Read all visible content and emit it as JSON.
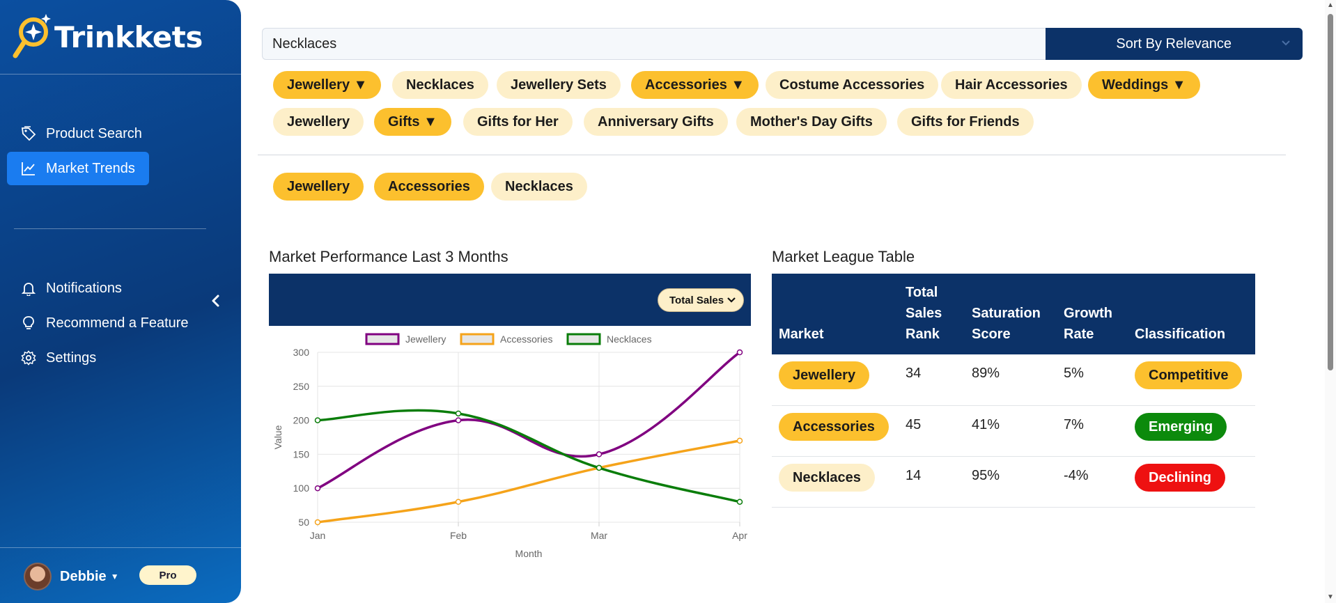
{
  "app": {
    "brand": "Trinkkets"
  },
  "sidebar": {
    "nav_top": [
      {
        "label": "Product Search",
        "icon": "tag-icon",
        "active": false
      },
      {
        "label": "Market Trends",
        "icon": "trend-chart-icon",
        "active": true
      }
    ],
    "nav_bottom": [
      {
        "label": "Notifications",
        "icon": "bell-icon"
      },
      {
        "label": "Recommend a Feature",
        "icon": "lightbulb-icon"
      },
      {
        "label": "Settings",
        "icon": "gear-icon"
      }
    ],
    "user": {
      "name": "Debbie",
      "plan": "Pro"
    }
  },
  "search": {
    "value": "Necklaces",
    "sort_label": "Sort By Relevance"
  },
  "category_chips": [
    {
      "label": "Jewellery ▼",
      "style": "gold"
    },
    {
      "label": "Necklaces",
      "style": "cream"
    },
    {
      "label": "Jewellery Sets",
      "style": "cream"
    },
    {
      "label": "Accessories ▼",
      "style": "gold"
    },
    {
      "label": "Costume Accessories",
      "style": "cream"
    },
    {
      "label": "Hair Accessories",
      "style": "cream"
    },
    {
      "label": "Weddings ▼",
      "style": "gold"
    },
    {
      "label": "Jewellery",
      "style": "cream"
    },
    {
      "label": "Gifts ▼",
      "style": "gold"
    },
    {
      "label": "Gifts for Her",
      "style": "cream"
    },
    {
      "label": "Anniversary Gifts",
      "style": "cream"
    },
    {
      "label": "Mother's Day Gifts",
      "style": "cream"
    },
    {
      "label": "Gifts for Friends",
      "style": "cream"
    }
  ],
  "selected_chips": [
    {
      "label": "Jewellery",
      "style": "gold"
    },
    {
      "label": "Accessories",
      "style": "gold"
    },
    {
      "label": "Necklaces",
      "style": "cream"
    }
  ],
  "performance": {
    "title": "Market Performance Last 3 Months",
    "metric_selected": "Total Sales"
  },
  "league": {
    "title": "Market League Table",
    "headers": [
      "Market",
      "Total Sales Rank",
      "Saturation Score",
      "Growth Rate",
      "Classification"
    ],
    "rows": [
      {
        "market": "Jewellery",
        "market_style": "gold",
        "rank": "34",
        "saturation": "89%",
        "growth": "5%",
        "classification": "Competitive",
        "class_style": "comp"
      },
      {
        "market": "Accessories",
        "market_style": "gold",
        "rank": "45",
        "saturation": "41%",
        "growth": "7%",
        "classification": "Emerging",
        "class_style": "emerg"
      },
      {
        "market": "Necklaces",
        "market_style": "cream",
        "rank": "14",
        "saturation": "95%",
        "growth": "-4%",
        "classification": "Declining",
        "class_style": "decl"
      }
    ]
  },
  "chart_data": {
    "type": "line",
    "title": "",
    "xlabel": "Month",
    "ylabel": "Value",
    "categories": [
      "Jan",
      "Feb",
      "Mar",
      "Apr"
    ],
    "ylim": [
      50,
      300
    ],
    "yticks": [
      50,
      100,
      150,
      200,
      250,
      300
    ],
    "grid": true,
    "legend": "top-center",
    "series": [
      {
        "name": "Jewellery",
        "color": "#800080",
        "values": [
          100,
          200,
          150,
          300
        ]
      },
      {
        "name": "Accessories",
        "color": "#f5a31a",
        "values": [
          50,
          80,
          130,
          170
        ]
      },
      {
        "name": "Necklaces",
        "color": "#0a7d0a",
        "values": [
          200,
          210,
          130,
          80
        ]
      }
    ]
  },
  "colors": {
    "navy": "#0c3268",
    "gold": "#fcc02e",
    "cream": "#fdefc9",
    "active_nav": "#1a7cf0"
  }
}
